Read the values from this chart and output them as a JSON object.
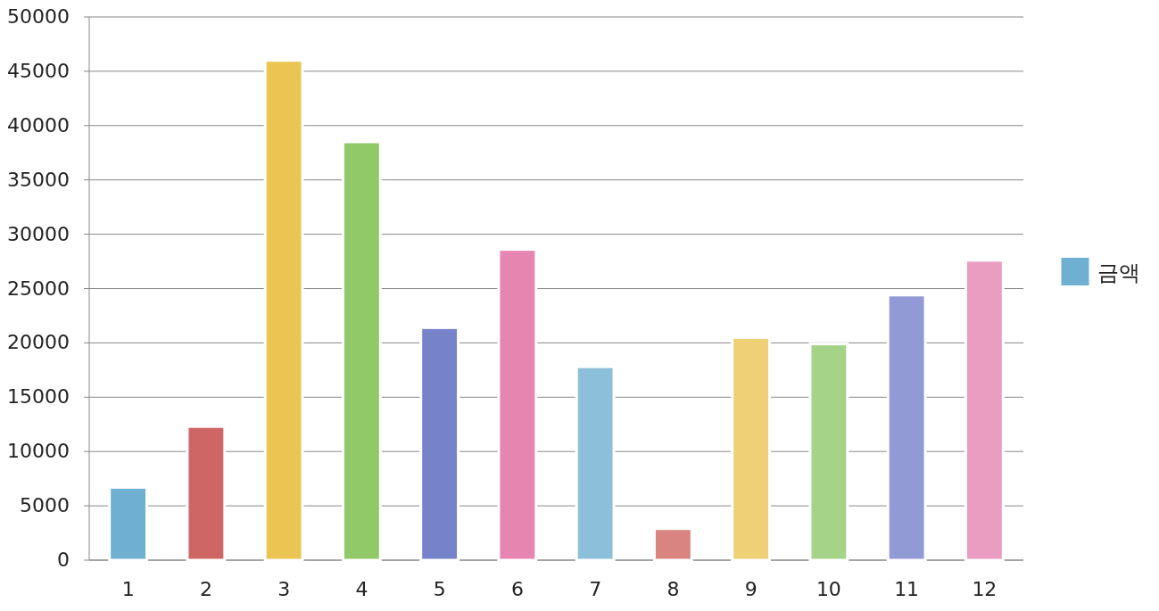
{
  "chart_data": {
    "type": "bar",
    "categories": [
      "1",
      "2",
      "3",
      "4",
      "5",
      "6",
      "7",
      "8",
      "9",
      "10",
      "11",
      "12"
    ],
    "series": [
      {
        "name": "금액",
        "color": "#6fb0d2",
        "colors": [
          "#6fb0d2",
          "#cd6664",
          "#ecc452",
          "#92c968",
          "#7682c9",
          "#e685b0",
          "#8cc0da",
          "#d98480",
          "#efd077",
          "#a5d488",
          "#919ad4",
          "#ea9dc1"
        ],
        "values": [
          6700,
          12300,
          46000,
          38500,
          21400,
          28600,
          17800,
          2900,
          20500,
          19900,
          24400,
          27600
        ]
      }
    ],
    "ylim": [
      0,
      50000
    ],
    "yticks": [
      0,
      5000,
      10000,
      15000,
      20000,
      25000,
      30000,
      35000,
      40000,
      45000,
      50000
    ],
    "grid": "y",
    "legend": "right"
  }
}
